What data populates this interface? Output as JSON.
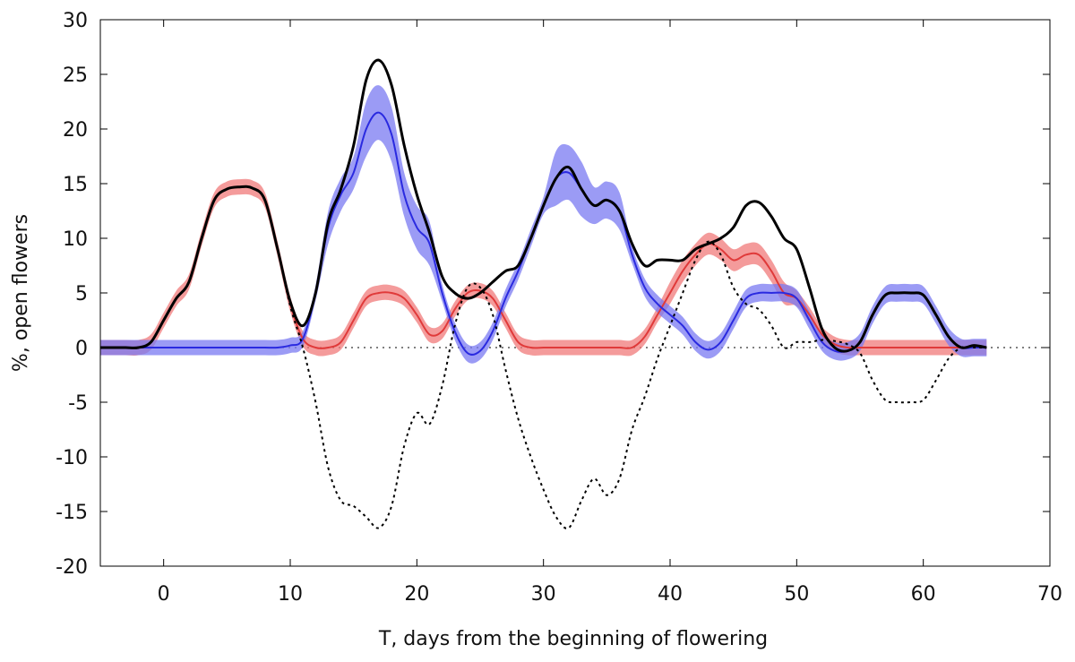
{
  "chart_data": {
    "type": "line",
    "xlabel": "T, days from the beginning of flowering",
    "ylabel": "%, open flowers",
    "xlim": [
      -5,
      70
    ],
    "xticks": [
      0,
      10,
      20,
      30,
      40,
      50,
      60,
      70
    ],
    "ylim": [
      -20,
      30
    ],
    "yticks": [
      -20,
      -15,
      -10,
      -5,
      0,
      5,
      10,
      15,
      20,
      25,
      30
    ],
    "x": [
      -5,
      -4,
      -3,
      -2,
      -1,
      0,
      1,
      2,
      3,
      4,
      5,
      6,
      7,
      8,
      9,
      10,
      11,
      12,
      13,
      14,
      15,
      16,
      17,
      18,
      19,
      20,
      21,
      22,
      23,
      24,
      25,
      26,
      27,
      28,
      29,
      30,
      31,
      32,
      33,
      34,
      35,
      36,
      37,
      38,
      39,
      40,
      41,
      42,
      43,
      44,
      45,
      46,
      47,
      48,
      49,
      50,
      51,
      52,
      53,
      54,
      55,
      56,
      57,
      58,
      59,
      60,
      61,
      62,
      63,
      64,
      65
    ],
    "series": [
      {
        "color": "#e03a3a",
        "band_color": "#f07a7a",
        "style": "solid",
        "width": 2,
        "values": [
          0,
          0,
          0,
          0,
          0.5,
          2.5,
          4.5,
          6,
          10,
          13.5,
          14.5,
          14.7,
          14.6,
          13.5,
          9,
          4,
          0.8,
          0,
          0,
          0.5,
          2.5,
          4.5,
          5,
          5,
          4.5,
          3,
          1.2,
          1.5,
          3.5,
          5,
          5.2,
          4.5,
          2.5,
          0.5,
          0,
          0,
          0,
          0,
          0,
          0,
          0,
          0,
          0,
          1,
          3,
          5,
          7,
          8.5,
          9.5,
          9,
          8,
          8.5,
          8.5,
          7,
          5,
          4.5,
          3,
          1.2,
          0.3,
          0,
          0,
          0,
          0,
          0,
          0,
          0,
          0,
          0,
          0,
          0,
          0
        ],
        "errors": [
          0.7,
          0.7,
          0.7,
          0.7,
          0.7,
          0.7,
          0.7,
          0.7,
          0.7,
          0.7,
          0.7,
          0.7,
          0.7,
          0.7,
          0.7,
          0.7,
          0.7,
          0.7,
          0.7,
          0.7,
          0.7,
          0.7,
          0.7,
          0.7,
          0.7,
          0.7,
          0.7,
          0.7,
          0.7,
          0.7,
          0.7,
          0.7,
          0.7,
          0.7,
          0.7,
          0.7,
          0.7,
          0.7,
          0.7,
          0.7,
          0.7,
          0.7,
          0.7,
          0.7,
          0.7,
          1,
          1,
          1,
          1,
          1,
          1,
          1,
          1,
          1,
          1,
          0.7,
          0.7,
          0.7,
          0.7,
          0.7,
          0.7,
          0.7,
          0.7,
          0.7,
          0.7,
          0.7,
          0.7,
          0.7,
          0.7,
          0.7,
          0.7
        ]
      },
      {
        "color": "#2a2ae0",
        "band_color": "#7a7af2",
        "style": "solid",
        "width": 2,
        "values": [
          0,
          0,
          0,
          0,
          0,
          0,
          0,
          0,
          0,
          0,
          0,
          0,
          0,
          0,
          0,
          0.2,
          0.8,
          5,
          11,
          14,
          16,
          20,
          21.5,
          19.5,
          14,
          11,
          9.5,
          5,
          1.5,
          -0.5,
          -0.3,
          1.5,
          4.5,
          7,
          10,
          13,
          15.5,
          16,
          14.5,
          13,
          13.5,
          12.5,
          8.5,
          5.5,
          4,
          3,
          2,
          0.5,
          -0.2,
          0.5,
          2.5,
          4.5,
          5,
          5,
          5,
          4.5,
          2.5,
          0.5,
          -0.3,
          -0.3,
          0.5,
          3,
          4.8,
          5,
          5,
          4.8,
          3,
          1,
          0,
          0,
          0
        ],
        "errors": [
          0.7,
          0.7,
          0.7,
          0.7,
          0.7,
          0.7,
          0.7,
          0.7,
          0.7,
          0.7,
          0.7,
          0.7,
          0.7,
          0.7,
          0.7,
          0.7,
          0.7,
          0.7,
          1.5,
          1.5,
          1.5,
          2.5,
          2.5,
          2.5,
          2,
          2,
          2,
          0.8,
          0.8,
          0.8,
          0.8,
          0.8,
          0.8,
          0.8,
          0.8,
          0.8,
          2.5,
          2.5,
          2.5,
          1.7,
          1.7,
          1.7,
          0.8,
          0.8,
          0.8,
          0.8,
          0.8,
          0.8,
          0.8,
          0.8,
          0.8,
          0.8,
          0.8,
          0.8,
          0.8,
          0.8,
          0.8,
          0.8,
          0.8,
          0.8,
          0.8,
          0.8,
          0.8,
          0.8,
          0.8,
          0.8,
          0.8,
          0.8,
          0.8,
          0.8,
          0.8
        ]
      },
      {
        "color": "#000000",
        "style": "dotted",
        "width": 2,
        "values": [
          0,
          0,
          0,
          0,
          0.5,
          2.5,
          4.5,
          6,
          10,
          13.5,
          14.5,
          14.7,
          14.6,
          13.5,
          9,
          3.8,
          0,
          -5,
          -11,
          -14,
          -14.5,
          -15.5,
          -16.5,
          -14.5,
          -9,
          -6,
          -7,
          -3.5,
          2,
          5.5,
          5.5,
          3,
          -2,
          -6.5,
          -10,
          -13,
          -15.5,
          -16.5,
          -14,
          -12,
          -13.5,
          -12,
          -7.5,
          -4.5,
          -1,
          2,
          5,
          8,
          9.7,
          8.5,
          5.5,
          4,
          3.5,
          2,
          0,
          0.5,
          0.5,
          0.7,
          0.6,
          0.3,
          -0.5,
          -3,
          -4.8,
          -5,
          -5,
          -4.8,
          -3,
          -1,
          0,
          0,
          0
        ]
      },
      {
        "color": "#000000",
        "style": "solid",
        "width": 3,
        "values": [
          0,
          0,
          0,
          0,
          0.5,
          2.5,
          4.5,
          6,
          10,
          13.5,
          14.5,
          14.7,
          14.6,
          13.5,
          9,
          4.2,
          2,
          5,
          11.5,
          14.5,
          18.5,
          24.5,
          26.3,
          24,
          18.5,
          14,
          10.5,
          6.5,
          5,
          4.5,
          5,
          6,
          7,
          7.5,
          10,
          13,
          15.5,
          16.5,
          14.5,
          13,
          13.5,
          12.5,
          9.5,
          7.5,
          8,
          8,
          8,
          9,
          9.5,
          10,
          11,
          13,
          13.3,
          12,
          10,
          9,
          5.5,
          1.7,
          0,
          -0.3,
          0.5,
          3,
          4.8,
          5,
          5,
          4.8,
          3,
          1,
          0,
          0.2,
          0
        ]
      }
    ]
  }
}
